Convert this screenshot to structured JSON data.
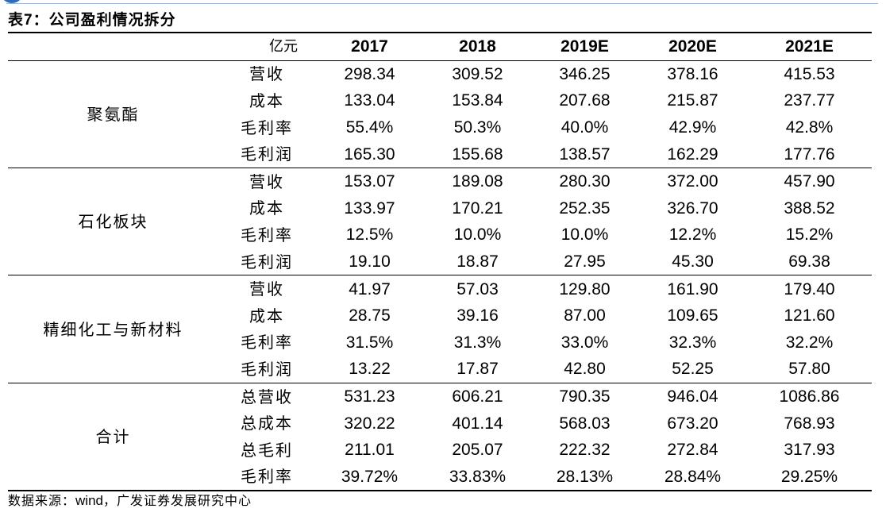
{
  "title": {
    "prefix": "表",
    "num": "7",
    "suffix": "：公司盈利情况拆分"
  },
  "header": {
    "unit": "亿元",
    "years": [
      "2017",
      "2018",
      "2019E",
      "2020E",
      "2021E"
    ]
  },
  "groups": [
    {
      "name": "聚氨酯",
      "rows": [
        {
          "metric": "营收",
          "values": [
            "298.34",
            "309.52",
            "346.25",
            "378.16",
            "415.53"
          ]
        },
        {
          "metric": "成本",
          "values": [
            "133.04",
            "153.84",
            "207.68",
            "215.87",
            "237.77"
          ]
        },
        {
          "metric": "毛利率",
          "values": [
            "55.4%",
            "50.3%",
            "40.0%",
            "42.9%",
            "42.8%"
          ]
        },
        {
          "metric": "毛利润",
          "values": [
            "165.30",
            "155.68",
            "138.57",
            "162.29",
            "177.76"
          ]
        }
      ]
    },
    {
      "name": "石化板块",
      "rows": [
        {
          "metric": "营收",
          "values": [
            "153.07",
            "189.08",
            "280.30",
            "372.00",
            "457.90"
          ]
        },
        {
          "metric": "成本",
          "values": [
            "133.97",
            "170.21",
            "252.35",
            "326.70",
            "388.52"
          ]
        },
        {
          "metric": "毛利率",
          "values": [
            "12.5%",
            "10.0%",
            "10.0%",
            "12.2%",
            "15.2%"
          ]
        },
        {
          "metric": "毛利润",
          "values": [
            "19.10",
            "18.87",
            "27.95",
            "45.30",
            "69.38"
          ]
        }
      ]
    },
    {
      "name": "精细化工与新材料",
      "rows": [
        {
          "metric": "营收",
          "values": [
            "41.97",
            "57.03",
            "129.80",
            "161.90",
            "179.40"
          ]
        },
        {
          "metric": "成本",
          "values": [
            "28.75",
            "39.16",
            "87.00",
            "109.65",
            "121.60"
          ]
        },
        {
          "metric": "毛利率",
          "values": [
            "31.5%",
            "31.3%",
            "33.0%",
            "32.3%",
            "32.2%"
          ]
        },
        {
          "metric": "毛利润",
          "values": [
            "13.22",
            "17.87",
            "42.80",
            "52.25",
            "57.80"
          ]
        }
      ]
    },
    {
      "name": "合计",
      "rows": [
        {
          "metric": "总营收",
          "values": [
            "531.23",
            "606.21",
            "790.35",
            "946.04",
            "1086.86"
          ]
        },
        {
          "metric": "总成本",
          "values": [
            "320.22",
            "401.14",
            "568.03",
            "673.20",
            "768.93"
          ]
        },
        {
          "metric": "总毛利",
          "values": [
            "211.01",
            "205.07",
            "222.32",
            "272.84",
            "317.93"
          ]
        },
        {
          "metric": "毛利率",
          "values": [
            "39.72%",
            "33.83%",
            "28.13%",
            "28.84%",
            "29.25%"
          ]
        }
      ]
    }
  ],
  "source": {
    "label": "数据来源：",
    "name": "wind",
    "rest": "，广发证券发展研究中心"
  }
}
